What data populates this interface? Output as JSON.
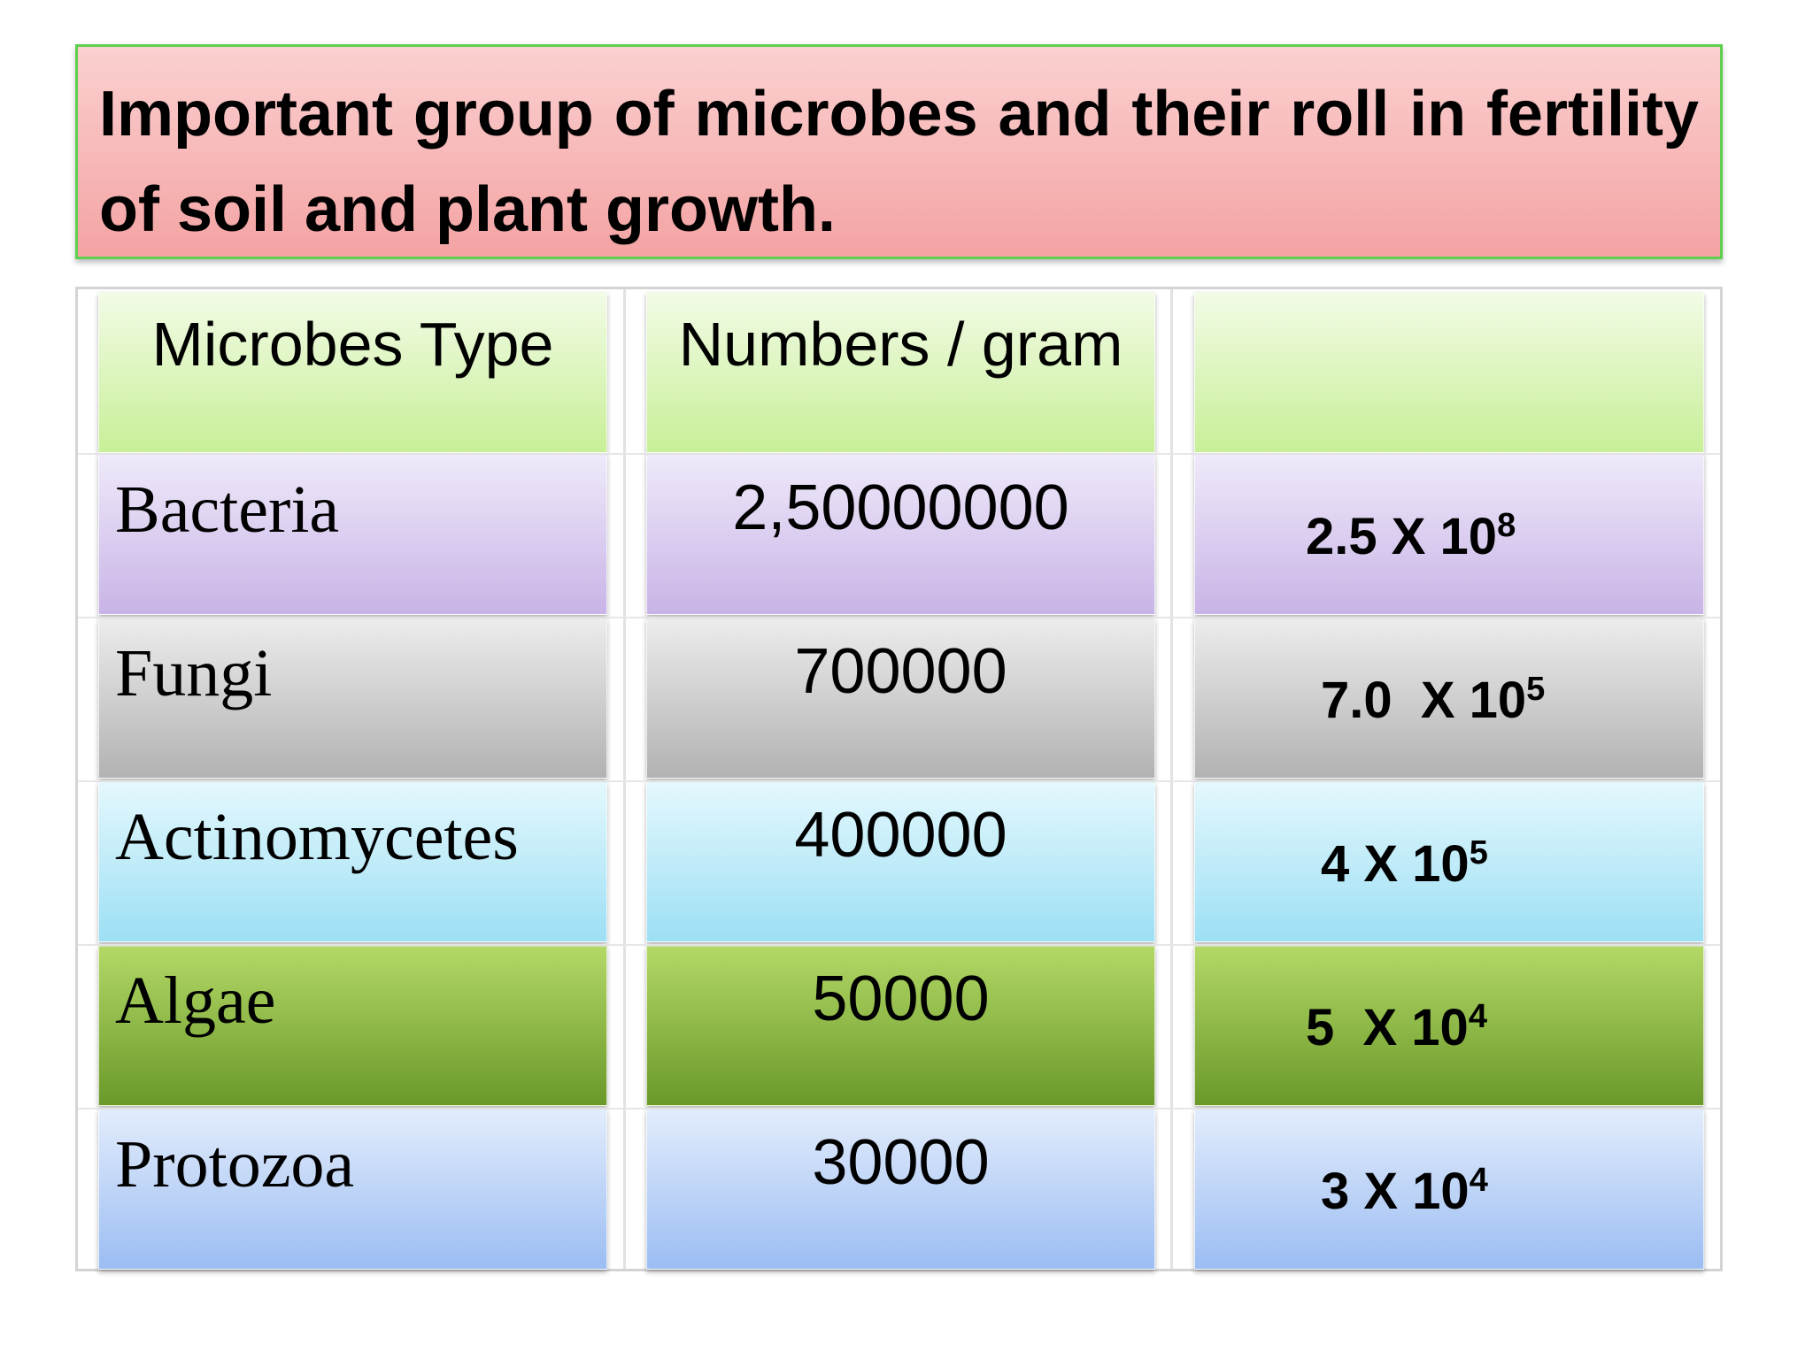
{
  "title": "Important group of microbes and their roll in fertility of soil and plant growth.",
  "table": {
    "header": [
      "Microbes Type",
      "Numbers / gram"
    ],
    "rows": [
      [
        "Bacteria",
        "2,50000000",
        {
          "base": "2.5 X 10",
          "exponent": "8"
        }
      ],
      [
        "Fungi",
        "700000",
        {
          "base": "7.0  X 10",
          "exponent": "5"
        }
      ],
      [
        "Actinomycetes",
        "400000",
        {
          "base": "4 X 10",
          "exponent": "5"
        }
      ],
      [
        "Algae",
        "50000",
        {
          "base": "5  X 10",
          "exponent": "4"
        }
      ],
      [
        "Protozoa",
        "30000",
        {
          "base": "3 X 10",
          "exponent": "4"
        }
      ]
    ]
  }
}
